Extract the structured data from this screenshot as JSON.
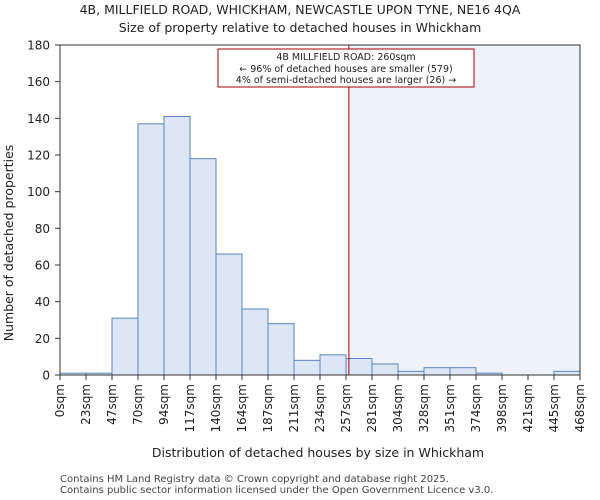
{
  "chart_data": {
    "type": "bar",
    "title": "4B, MILLFIELD ROAD, WHICKHAM, NEWCASTLE UPON TYNE, NE16 4QA",
    "subtitle": "Size of property relative to detached houses in Whickham",
    "xlabel": "Distribution of detached houses by size in Whickham",
    "ylabel": "Number of detached properties",
    "ylim": [
      0,
      180
    ],
    "yticks": [
      0,
      20,
      40,
      60,
      80,
      100,
      120,
      140,
      160,
      180
    ],
    "bin_edges": [
      0,
      23.4,
      46.8,
      70.2,
      93.6,
      117,
      140.4,
      163.8,
      187.2,
      210.6,
      234,
      257.4,
      280.8,
      304.2,
      327.6,
      351,
      374.4,
      397.8,
      421.2,
      444.6,
      468
    ],
    "x_tick_labels": [
      "0sqm",
      "23sqm",
      "47sqm",
      "70sqm",
      "94sqm",
      "117sqm",
      "140sqm",
      "164sqm",
      "187sqm",
      "211sqm",
      "234sqm",
      "257sqm",
      "281sqm",
      "304sqm",
      "328sqm",
      "351sqm",
      "374sqm",
      "398sqm",
      "421sqm",
      "445sqm",
      "468sqm"
    ],
    "values": [
      1,
      1,
      31,
      137,
      141,
      118,
      66,
      36,
      28,
      8,
      11,
      9,
      6,
      2,
      4,
      4,
      1,
      0,
      0,
      2
    ],
    "marker_value": 260,
    "annotation": {
      "line1": "4B MILLFIELD ROAD: 260sqm",
      "line2": "← 96% of detached houses are smaller (579)",
      "line3": "4% of semi-detached houses are larger (26) →"
    },
    "colors": {
      "bar_fill": "#dce6f4",
      "bar_edge": "#5b84c2",
      "marker": "#aa0000",
      "highlight_region": "#eef2fa"
    }
  },
  "footer": {
    "line1": "Contains HM Land Registry data © Crown copyright and database right 2025.",
    "line2": "Contains public sector information licensed under the Open Government Licence v3.0."
  }
}
